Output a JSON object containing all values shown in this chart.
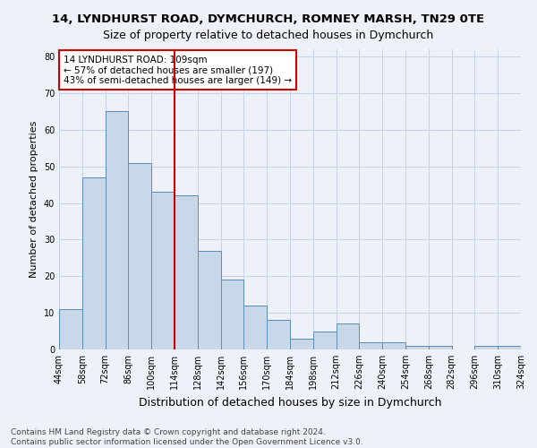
{
  "title_line1": "14, LYNDHURST ROAD, DYMCHURCH, ROMNEY MARSH, TN29 0TE",
  "title_line2": "Size of property relative to detached houses in Dymchurch",
  "xlabel": "Distribution of detached houses by size in Dymchurch",
  "ylabel": "Number of detached properties",
  "bar_values": [
    11,
    47,
    65,
    51,
    43,
    42,
    27,
    19,
    12,
    8,
    3,
    5,
    7,
    2,
    2,
    1,
    1,
    0,
    1,
    1
  ],
  "bar_labels": [
    "44sqm",
    "58sqm",
    "72sqm",
    "86sqm",
    "100sqm",
    "114sqm",
    "128sqm",
    "142sqm",
    "156sqm",
    "170sqm",
    "184sqm",
    "198sqm",
    "212sqm",
    "226sqm",
    "240sqm",
    "254sqm",
    "268sqm",
    "282sqm",
    "296sqm",
    "310sqm",
    "324sqm"
  ],
  "bar_color": "#c8d8e8",
  "bar_edge_color": "#5b8db8",
  "vline_color": "#cc0000",
  "annotation_text": "14 LYNDHURST ROAD: 109sqm\n← 57% of detached houses are smaller (197)\n43% of semi-detached houses are larger (149) →",
  "annotation_box_facecolor": "#ffffff",
  "annotation_box_edgecolor": "#cc0000",
  "ylim": [
    0,
    82
  ],
  "yticks": [
    0,
    10,
    20,
    30,
    40,
    50,
    60,
    70,
    80
  ],
  "grid_color": "#c8d4e8",
  "footer_line1": "Contains HM Land Registry data © Crown copyright and database right 2024.",
  "footer_line2": "Contains public sector information licensed under the Open Government Licence v3.0.",
  "bg_color": "#eef2f8",
  "title_fontsize": 9.5,
  "subtitle_fontsize": 9,
  "xlabel_fontsize": 9,
  "ylabel_fontsize": 8,
  "tick_fontsize": 7,
  "footer_fontsize": 6.5,
  "annotation_fontsize": 7.5,
  "vline_bar_index": 4.5
}
